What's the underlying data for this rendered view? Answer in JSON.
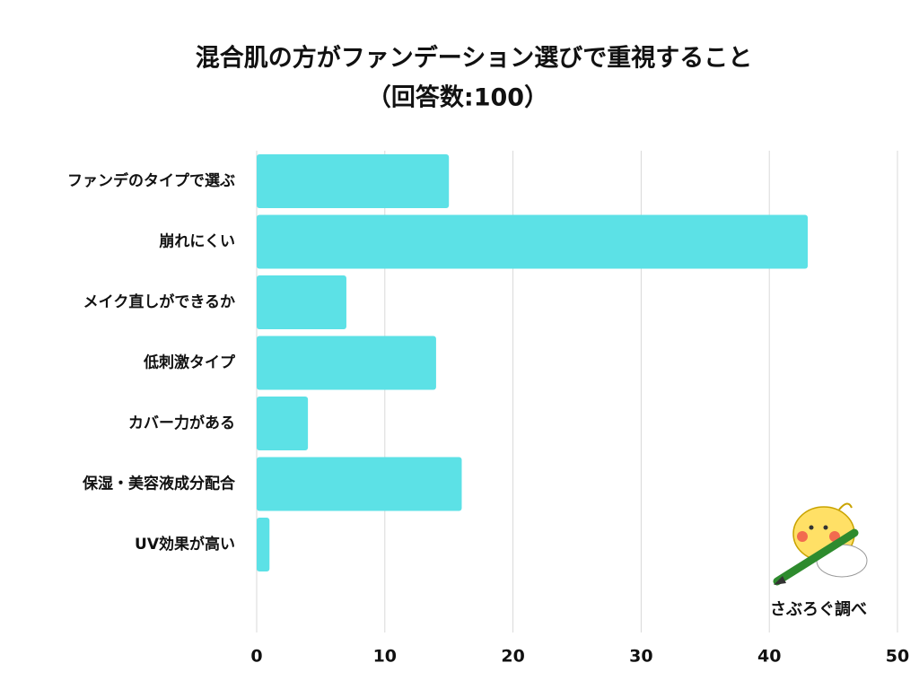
{
  "chart_data": {
    "type": "bar",
    "orientation": "horizontal",
    "title": "混合肌の方がファンデーション選びで重視すること",
    "subtitle": "（回答数:100）",
    "categories": [
      "ファンデのタイプで選ぶ",
      "崩れにくい",
      "メイク直しができるか",
      "低刺激タイプ",
      "カバー力がある",
      "保湿・美容液成分配合",
      "UV効果が高い"
    ],
    "values": [
      15,
      43,
      7,
      14,
      4,
      16,
      1
    ],
    "color": "#5ce1e6",
    "xlim": [
      0,
      50
    ],
    "xticks": [
      0,
      10,
      20,
      30,
      40,
      50
    ],
    "grid": true,
    "source": "さぶろぐ調べ"
  }
}
